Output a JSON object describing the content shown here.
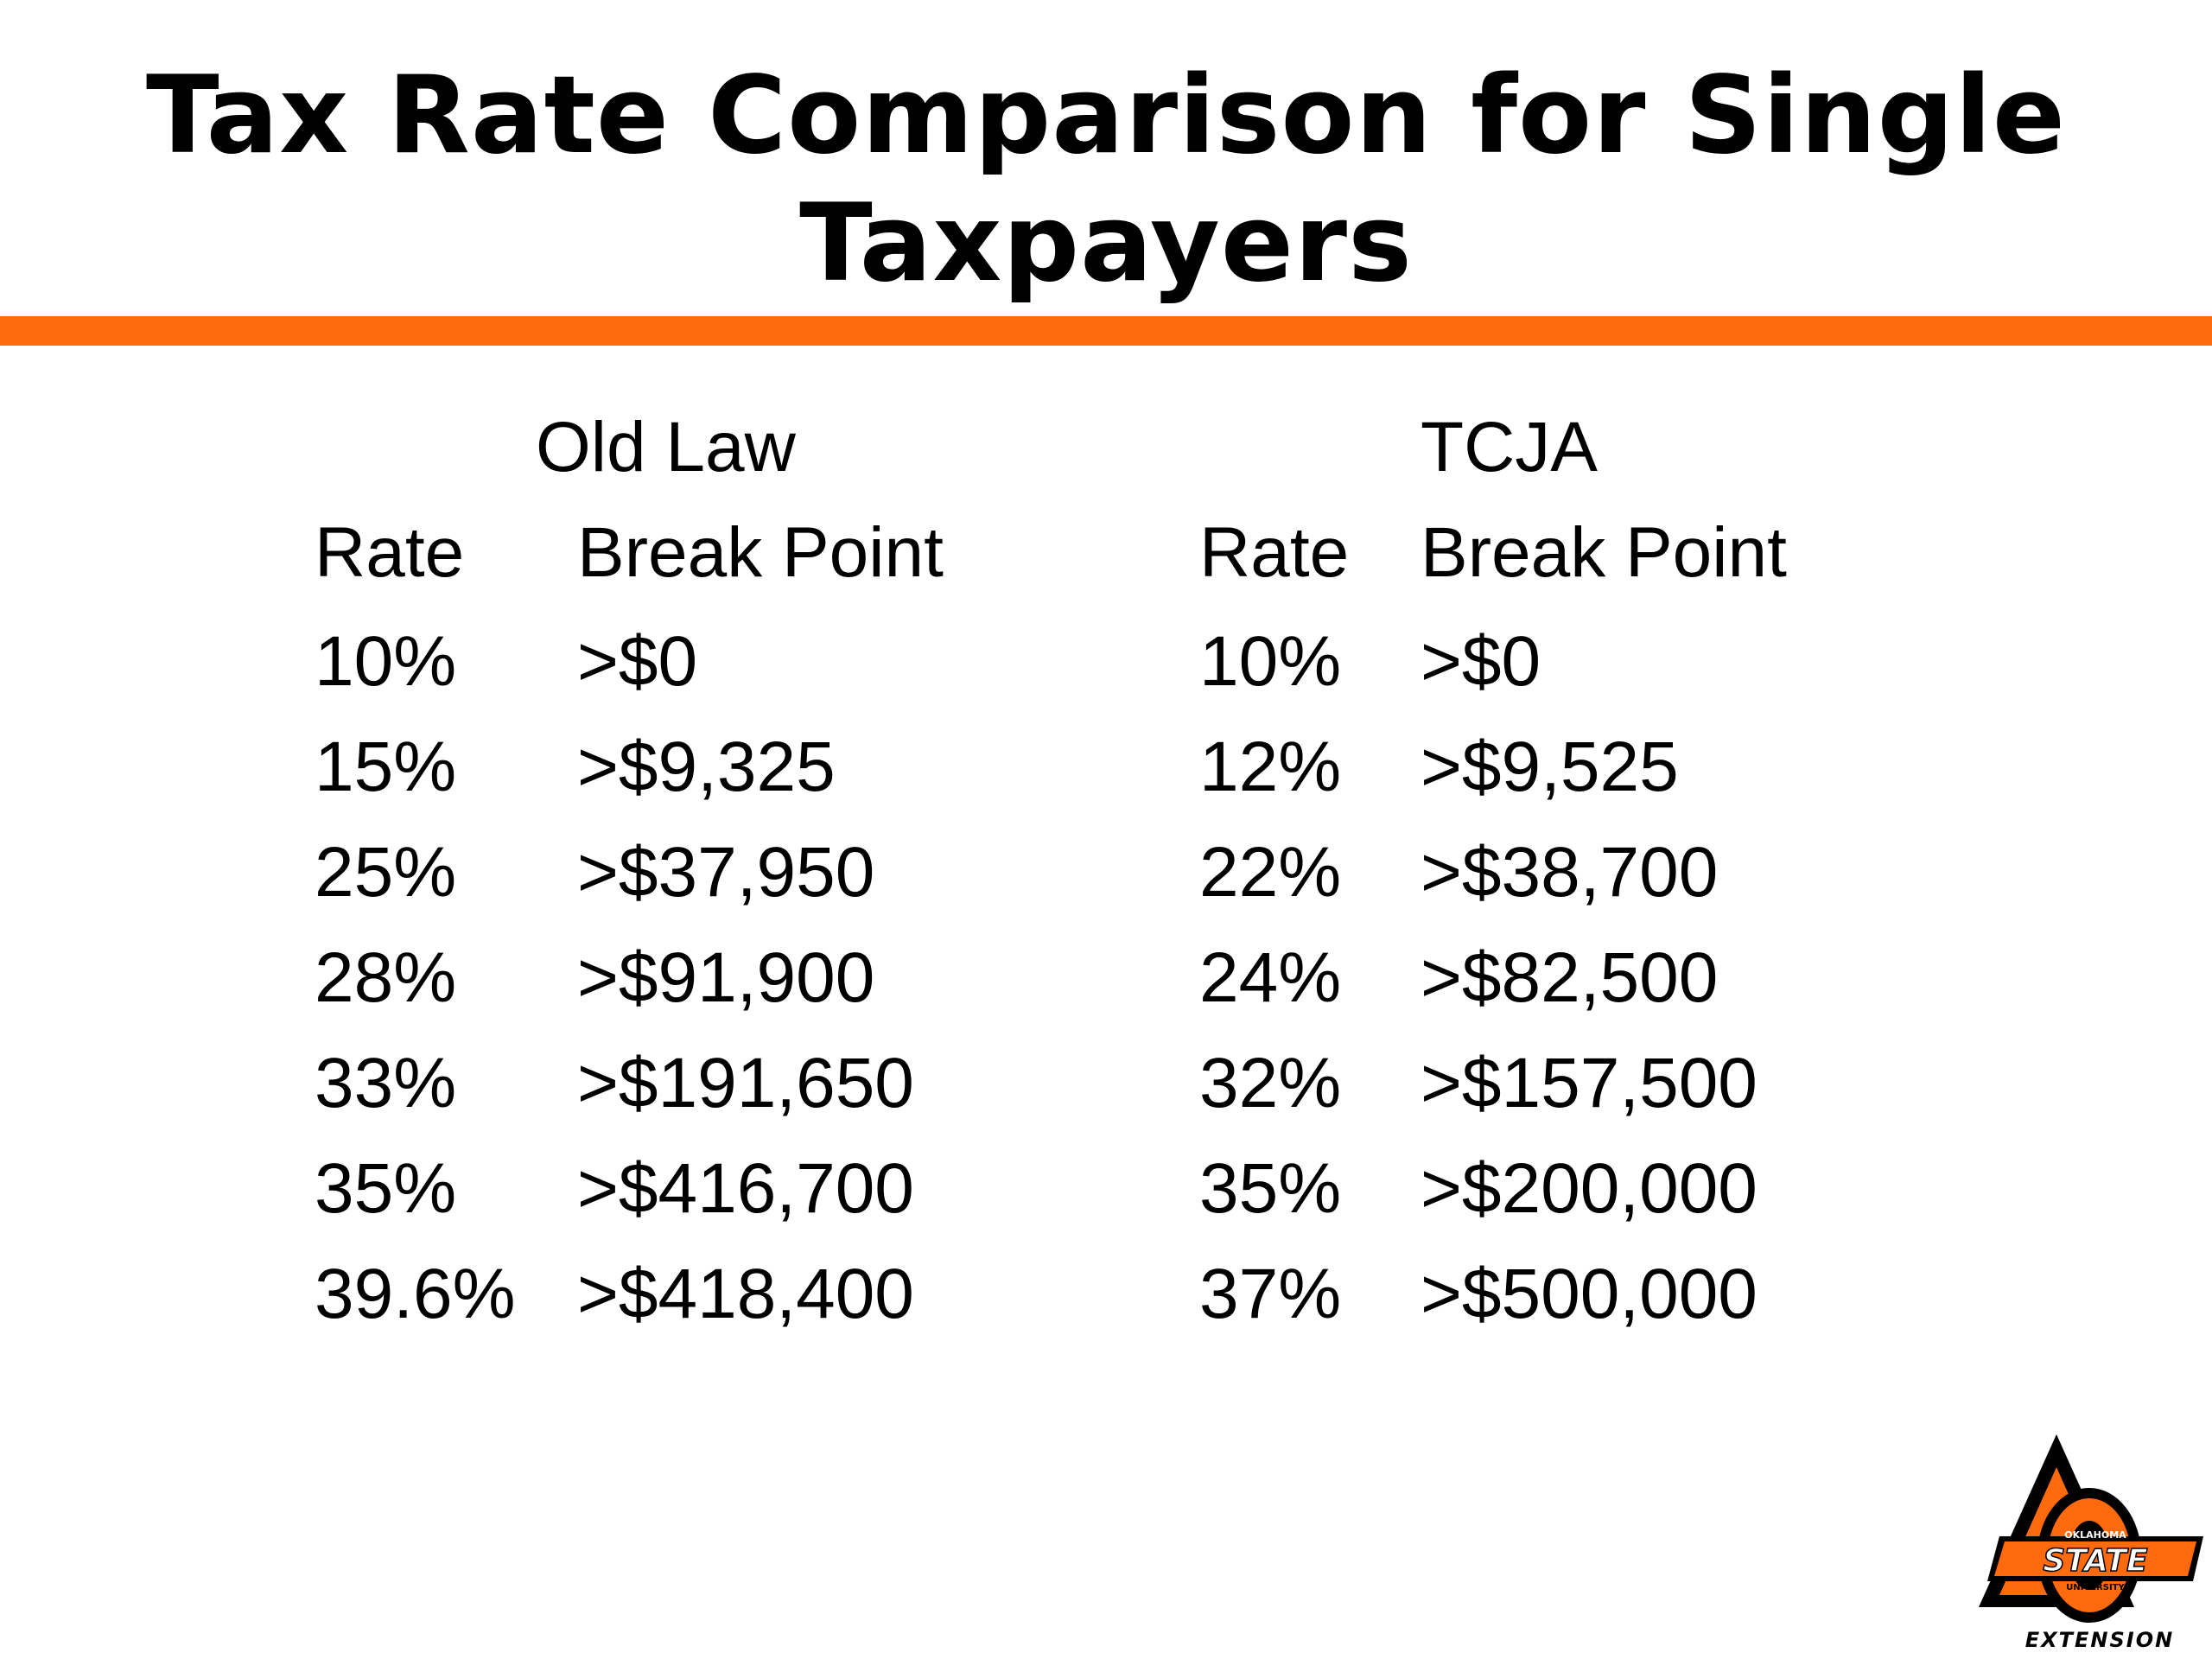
{
  "slide": {
    "title_line1": "Tax Rate Comparison for Single",
    "title_line2": "Taxpayers"
  },
  "old_law": {
    "heading": "Old Law",
    "rate_header": "Rate",
    "break_header": "Break Point",
    "rows": [
      {
        "rate": "10%",
        "break_point": ">$0"
      },
      {
        "rate": "15%",
        "break_point": ">$9,325"
      },
      {
        "rate": "25%",
        "break_point": ">$37,950"
      },
      {
        "rate": "28%",
        "break_point": ">$91,900"
      },
      {
        "rate": "33%",
        "break_point": ">$191,650"
      },
      {
        "rate": "35%",
        "break_point": ">$416,700"
      },
      {
        "rate": "39.6%",
        "break_point": ">$418,400"
      }
    ]
  },
  "tcja": {
    "heading": "TCJA",
    "rate_header": "Rate",
    "break_header": "Break Point",
    "rows": [
      {
        "rate": "10%",
        "break_point": ">$0"
      },
      {
        "rate": "12%",
        "break_point": ">$9,525"
      },
      {
        "rate": "22%",
        "break_point": ">$38,700"
      },
      {
        "rate": "24%",
        "break_point": ">$82,500"
      },
      {
        "rate": "32%",
        "break_point": ">$157,500"
      },
      {
        "rate": "35%",
        "break_point": ">$200,000"
      },
      {
        "rate": "37%",
        "break_point": ">$500,000"
      }
    ]
  },
  "logo": {
    "line1": "OKLAHOMA",
    "line2": "STATE",
    "line3": "UNIVERSITY",
    "caption": "EXTENSION"
  },
  "colors": {
    "accent": "#ff6a0e",
    "text": "#000000",
    "background": "#ffffff"
  }
}
